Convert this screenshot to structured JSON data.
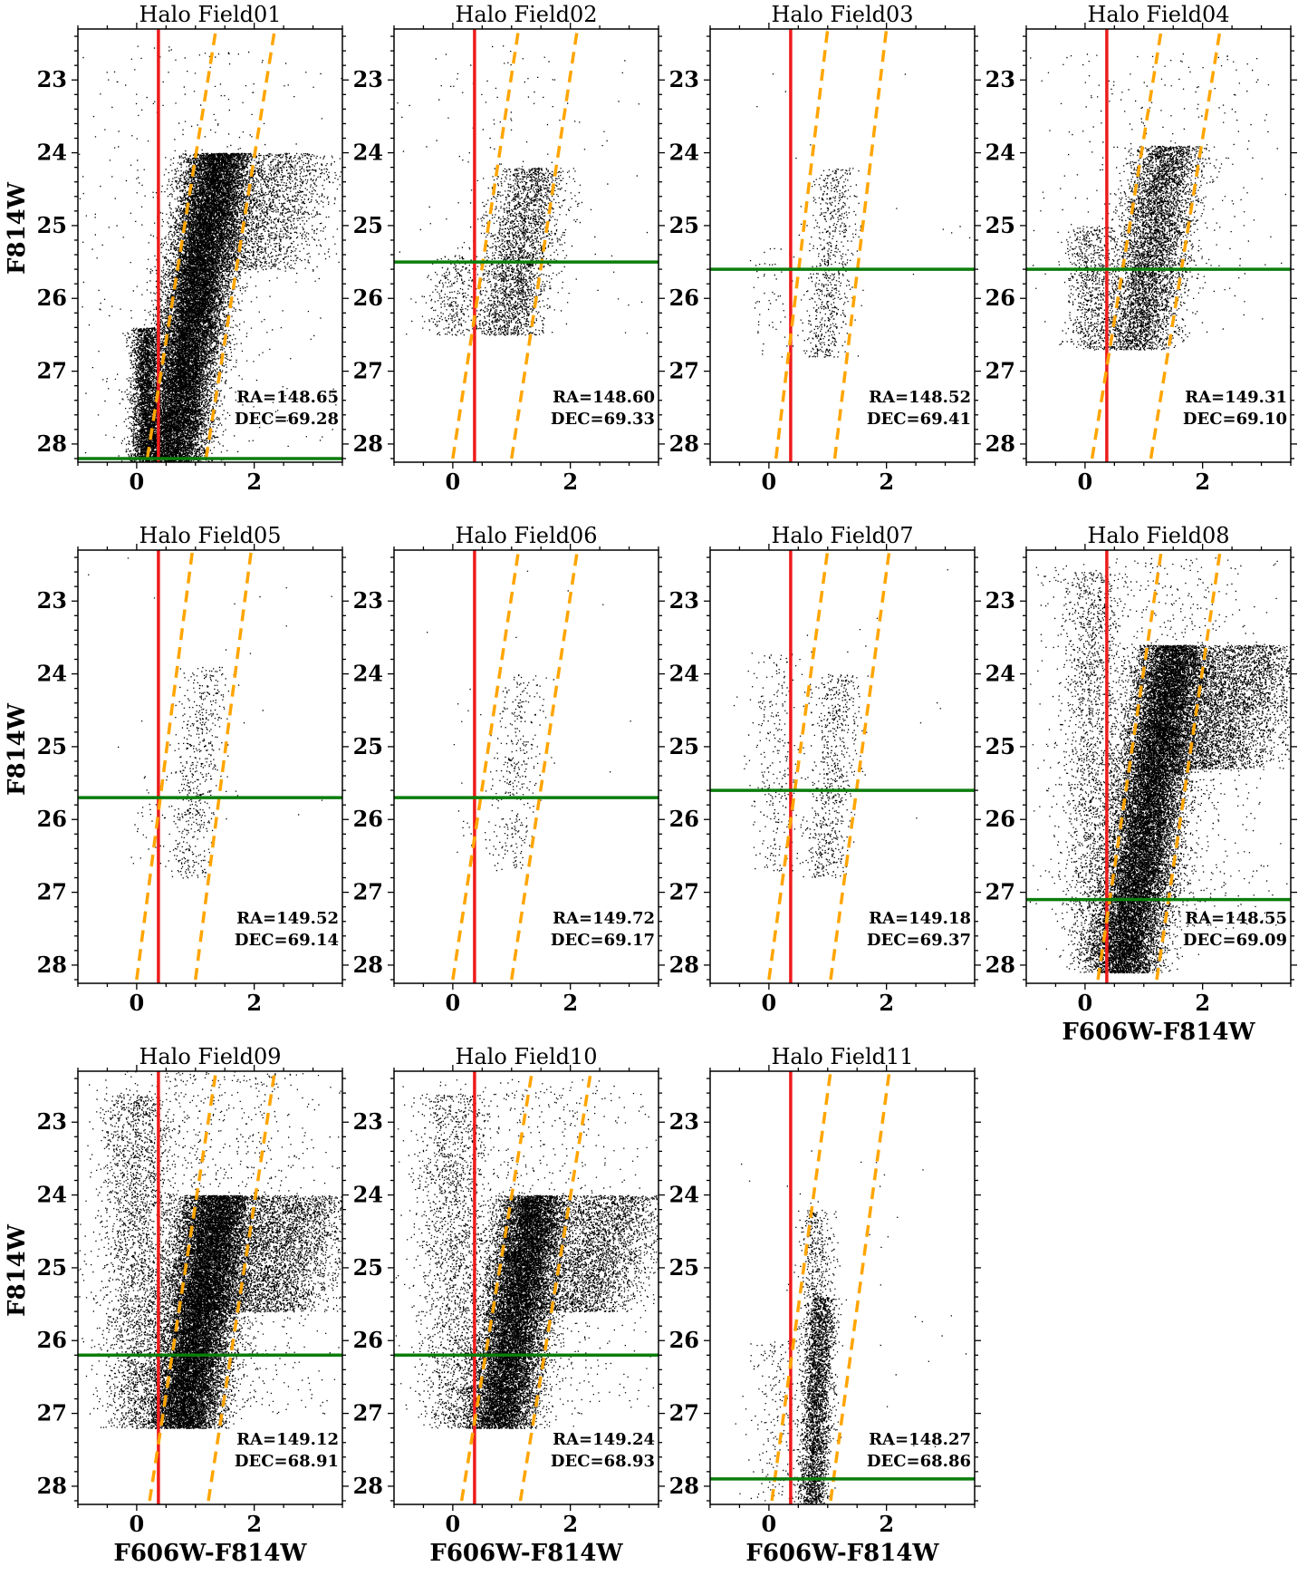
{
  "colors": {
    "points": "#000000",
    "color_cut": "#ee1c1c",
    "trgb_line": "#0b7d0b",
    "rgb_box": "#ffa500",
    "frame": "#000000"
  },
  "chart_data": [
    {
      "type": "scatter",
      "title": "Halo Field01",
      "xlabel": "",
      "ylabel": "F814W",
      "xlim": [
        -1,
        3.5
      ],
      "ylim": [
        28.25,
        22.3
      ],
      "xticks": [
        0,
        2
      ],
      "yticks": [
        23,
        24,
        25,
        26,
        27,
        28
      ],
      "xticklabels": [
        "0",
        "2"
      ],
      "yticklabels": [
        "23",
        "24",
        "25",
        "26",
        "27",
        "28"
      ],
      "color_cut_x": 0.37,
      "trgb_mag": 28.2,
      "rgb_box_lines": [
        [
          [
            0.18,
            28.2
          ],
          [
            1.35,
            22.3
          ]
        ],
        [
          [
            1.18,
            28.2
          ],
          [
            2.35,
            22.3
          ]
        ]
      ],
      "annotation": [
        "RA=148.65",
        "DEC=69.28"
      ],
      "populations": [
        {
          "n": 22000,
          "c0": 1.0,
          "slope": -0.2,
          "w": 0.28,
          "mtop": 24.0,
          "mbot": 28.25
        },
        {
          "n": 2200,
          "c0": 1.6,
          "slope": -0.45,
          "w": 0.55,
          "mtop": 24.0,
          "mbot": 25.6
        },
        {
          "n": 2600,
          "c0": 0.15,
          "slope": 0,
          "w": 0.12,
          "mtop": 26.4,
          "mbot": 28.25
        },
        {
          "n": 500,
          "c0": 0.8,
          "slope": 0,
          "w": 1.2,
          "mtop": 22.5,
          "mbot": 28.2
        }
      ]
    },
    {
      "type": "scatter",
      "title": "Halo Field02",
      "xlabel": "",
      "ylabel": "",
      "xlim": [
        -1,
        3.5
      ],
      "ylim": [
        28.25,
        22.3
      ],
      "xticks": [
        0,
        2
      ],
      "yticks": [
        23,
        24,
        25,
        26,
        27,
        28
      ],
      "xticklabels": [
        "0",
        "2"
      ],
      "yticklabels": [
        "23",
        "24",
        "25",
        "26",
        "27",
        "28"
      ],
      "color_cut_x": 0.37,
      "trgb_mag": 25.5,
      "rgb_box_lines": [
        [
          [
            0.0,
            28.2
          ],
          [
            1.12,
            22.3
          ]
        ],
        [
          [
            1.0,
            28.2
          ],
          [
            2.12,
            22.3
          ]
        ]
      ],
      "annotation": [
        "RA=148.60",
        "DEC=69.33"
      ],
      "populations": [
        {
          "n": 2600,
          "c0": 1.0,
          "slope": -0.2,
          "w": 0.3,
          "mtop": 24.2,
          "mbot": 26.5
        },
        {
          "n": 300,
          "c0": 0.0,
          "slope": 0,
          "w": 0.2,
          "mtop": 25.4,
          "mbot": 26.5
        },
        {
          "n": 200,
          "c0": 1.0,
          "slope": 0,
          "w": 1.0,
          "mtop": 22.5,
          "mbot": 26.5
        }
      ]
    },
    {
      "type": "scatter",
      "title": "Halo Field03",
      "xlabel": "",
      "ylabel": "",
      "xlim": [
        -1,
        3.5
      ],
      "ylim": [
        28.25,
        22.3
      ],
      "xticks": [
        0,
        2
      ],
      "yticks": [
        23,
        24,
        25,
        26,
        27,
        28
      ],
      "xticklabels": [
        "0",
        "2"
      ],
      "yticklabels": [
        "23",
        "24",
        "25",
        "26",
        "27",
        "28"
      ],
      "color_cut_x": 0.37,
      "trgb_mag": 25.6,
      "rgb_box_lines": [
        [
          [
            0.12,
            28.2
          ],
          [
            1.0,
            22.3
          ]
        ],
        [
          [
            1.12,
            28.2
          ],
          [
            2.0,
            22.3
          ]
        ]
      ],
      "annotation": [
        "RA=148.52",
        "DEC=69.41"
      ],
      "populations": [
        {
          "n": 700,
          "c0": 1.0,
          "slope": -0.1,
          "w": 0.18,
          "mtop": 24.2,
          "mbot": 26.8
        },
        {
          "n": 60,
          "c0": 0.1,
          "slope": 0,
          "w": 0.25,
          "mtop": 25.3,
          "mbot": 26.8
        },
        {
          "n": 20,
          "c0": 1.5,
          "slope": 0,
          "w": 1.3,
          "mtop": 22.8,
          "mbot": 26.0
        }
      ]
    },
    {
      "type": "scatter",
      "title": "Halo Field04",
      "xlabel": "",
      "ylabel": "",
      "xlim": [
        -1,
        3.5
      ],
      "ylim": [
        28.25,
        22.3
      ],
      "xticks": [
        0,
        2
      ],
      "yticks": [
        23,
        24,
        25,
        26,
        27,
        28
      ],
      "xticklabels": [
        "0",
        "2"
      ],
      "yticklabels": [
        "23",
        "24",
        "25",
        "26",
        "27",
        "28"
      ],
      "color_cut_x": 0.37,
      "trgb_mag": 25.6,
      "rgb_box_lines": [
        [
          [
            0.12,
            28.2
          ],
          [
            1.3,
            22.3
          ]
        ],
        [
          [
            1.12,
            28.2
          ],
          [
            2.3,
            22.3
          ]
        ]
      ],
      "annotation": [
        "RA=149.31",
        "DEC=69.10"
      ],
      "populations": [
        {
          "n": 5200,
          "c0": 1.0,
          "slope": -0.2,
          "w": 0.3,
          "mtop": 23.9,
          "mbot": 26.7
        },
        {
          "n": 800,
          "c0": 0.1,
          "slope": 0,
          "w": 0.22,
          "mtop": 25.0,
          "mbot": 26.7
        },
        {
          "n": 350,
          "c0": 1.2,
          "slope": 0,
          "w": 1.1,
          "mtop": 22.6,
          "mbot": 26.5
        }
      ]
    },
    {
      "type": "scatter",
      "title": "Halo Field05",
      "xlabel": "",
      "ylabel": "F814W",
      "xlim": [
        -1,
        3.5
      ],
      "ylim": [
        28.25,
        22.3
      ],
      "xticks": [
        0,
        2
      ],
      "yticks": [
        23,
        24,
        25,
        26,
        27,
        28
      ],
      "xticklabels": [
        "0",
        "2"
      ],
      "yticklabels": [
        "23",
        "24",
        "25",
        "26",
        "27",
        "28"
      ],
      "color_cut_x": 0.37,
      "trgb_mag": 25.7,
      "rgb_box_lines": [
        [
          [
            0.0,
            28.2
          ],
          [
            0.95,
            22.3
          ]
        ],
        [
          [
            1.0,
            28.2
          ],
          [
            1.95,
            22.3
          ]
        ]
      ],
      "annotation": [
        "RA=149.52",
        "DEC=69.14"
      ],
      "populations": [
        {
          "n": 600,
          "c0": 0.95,
          "slope": -0.12,
          "w": 0.2,
          "mtop": 23.9,
          "mbot": 26.8
        },
        {
          "n": 30,
          "c0": 0.2,
          "slope": 0,
          "w": 0.15,
          "mtop": 25.4,
          "mbot": 26.6
        },
        {
          "n": 20,
          "c0": 1.5,
          "slope": 0,
          "w": 1.2,
          "mtop": 22.4,
          "mbot": 26.0
        }
      ]
    },
    {
      "type": "scatter",
      "title": "Halo Field06",
      "xlabel": "",
      "ylabel": "",
      "xlim": [
        -1,
        3.5
      ],
      "ylim": [
        28.25,
        22.3
      ],
      "xticks": [
        0,
        2
      ],
      "yticks": [
        23,
        24,
        25,
        26,
        27,
        28
      ],
      "xticklabels": [
        "0",
        "2"
      ],
      "yticklabels": [
        "23",
        "24",
        "25",
        "26",
        "27",
        "28"
      ],
      "color_cut_x": 0.37,
      "trgb_mag": 25.7,
      "rgb_box_lines": [
        [
          [
            0.0,
            28.2
          ],
          [
            1.12,
            22.3
          ]
        ],
        [
          [
            1.0,
            28.2
          ],
          [
            2.12,
            22.3
          ]
        ]
      ],
      "annotation": [
        "RA=149.72",
        "DEC=69.17"
      ],
      "populations": [
        {
          "n": 340,
          "c0": 1.0,
          "slope": -0.1,
          "w": 0.2,
          "mtop": 24.0,
          "mbot": 26.7
        },
        {
          "n": 20,
          "c0": 0.2,
          "slope": 0,
          "w": 0.15,
          "mtop": 24.2,
          "mbot": 26.5
        },
        {
          "n": 15,
          "c0": 1.6,
          "slope": 0,
          "w": 1.2,
          "mtop": 22.5,
          "mbot": 25.5
        }
      ]
    },
    {
      "type": "scatter",
      "title": "Halo Field07",
      "xlabel": "",
      "ylabel": "",
      "xlim": [
        -1,
        3.5
      ],
      "ylim": [
        28.25,
        22.3
      ],
      "xticks": [
        0,
        2
      ],
      "yticks": [
        23,
        24,
        25,
        26,
        27,
        28
      ],
      "xticklabels": [
        "0",
        "2"
      ],
      "yticklabels": [
        "23",
        "24",
        "25",
        "26",
        "27",
        "28"
      ],
      "color_cut_x": 0.37,
      "trgb_mag": 25.6,
      "rgb_box_lines": [
        [
          [
            0.0,
            28.2
          ],
          [
            1.0,
            22.3
          ]
        ],
        [
          [
            1.05,
            28.2
          ],
          [
            2.05,
            22.3
          ]
        ]
      ],
      "annotation": [
        "RA=149.18",
        "DEC=69.37"
      ],
      "populations": [
        {
          "n": 700,
          "c0": 1.0,
          "slope": -0.1,
          "w": 0.2,
          "mtop": 24.0,
          "mbot": 26.8
        },
        {
          "n": 300,
          "c0": 0.1,
          "slope": 0,
          "w": 0.2,
          "mtop": 23.7,
          "mbot": 26.7
        },
        {
          "n": 30,
          "c0": 1.5,
          "slope": 0,
          "w": 1.2,
          "mtop": 22.5,
          "mbot": 26.0
        }
      ]
    },
    {
      "type": "scatter",
      "title": "Halo Field08",
      "xlabel": "F606W-F814W",
      "ylabel": "",
      "xlim": [
        -1,
        3.5
      ],
      "ylim": [
        28.25,
        22.3
      ],
      "xticks": [
        0,
        2
      ],
      "yticks": [
        23,
        24,
        25,
        26,
        27,
        28
      ],
      "xticklabels": [
        "0",
        "2"
      ],
      "yticklabels": [
        "23",
        "24",
        "25",
        "26",
        "27",
        "28"
      ],
      "color_cut_x": 0.37,
      "trgb_mag": 27.1,
      "rgb_box_lines": [
        [
          [
            0.22,
            28.2
          ],
          [
            1.3,
            22.3
          ]
        ],
        [
          [
            1.22,
            28.2
          ],
          [
            2.3,
            22.3
          ]
        ]
      ],
      "annotation": [
        "RA=148.55",
        "DEC=69.09"
      ],
      "populations": [
        {
          "n": 20000,
          "c0": 1.05,
          "slope": -0.2,
          "w": 0.3,
          "mtop": 23.6,
          "mbot": 28.1
        },
        {
          "n": 4000,
          "c0": 1.8,
          "slope": -0.4,
          "w": 0.55,
          "mtop": 23.6,
          "mbot": 25.3
        },
        {
          "n": 1800,
          "c0": 0.1,
          "slope": 0,
          "w": 0.25,
          "mtop": 22.6,
          "mbot": 28.0
        },
        {
          "n": 1200,
          "c0": 1.2,
          "slope": 0,
          "w": 1.1,
          "mtop": 22.4,
          "mbot": 27.5
        }
      ]
    },
    {
      "type": "scatter",
      "title": "Halo Field09",
      "xlabel": "F606W-F814W",
      "ylabel": "F814W",
      "xlim": [
        -1,
        3.5
      ],
      "ylim": [
        28.25,
        22.3
      ],
      "xticks": [
        0,
        2
      ],
      "yticks": [
        23,
        24,
        25,
        26,
        27,
        28
      ],
      "xticklabels": [
        "0",
        "2"
      ],
      "yticklabels": [
        "23",
        "24",
        "25",
        "26",
        "27",
        "28"
      ],
      "color_cut_x": 0.37,
      "trgb_mag": 26.2,
      "rgb_box_lines": [
        [
          [
            0.22,
            28.2
          ],
          [
            1.35,
            22.3
          ]
        ],
        [
          [
            1.22,
            28.2
          ],
          [
            2.35,
            22.3
          ]
        ]
      ],
      "annotation": [
        "RA=149.12",
        "DEC=68.91"
      ],
      "populations": [
        {
          "n": 18000,
          "c0": 1.0,
          "slope": -0.2,
          "w": 0.32,
          "mtop": 24.0,
          "mbot": 27.2
        },
        {
          "n": 3500,
          "c0": 1.9,
          "slope": -0.45,
          "w": 0.55,
          "mtop": 24.0,
          "mbot": 25.6
        },
        {
          "n": 2500,
          "c0": 0.0,
          "slope": 0,
          "w": 0.3,
          "mtop": 22.6,
          "mbot": 27.2
        },
        {
          "n": 1500,
          "c0": 1.2,
          "slope": 0,
          "w": 1.1,
          "mtop": 22.3,
          "mbot": 27.0
        }
      ]
    },
    {
      "type": "scatter",
      "title": "Halo Field10",
      "xlabel": "F606W-F814W",
      "ylabel": "",
      "xlim": [
        -1,
        3.5
      ],
      "ylim": [
        28.25,
        22.3
      ],
      "xticks": [
        0,
        2
      ],
      "yticks": [
        23,
        24,
        25,
        26,
        27,
        28
      ],
      "xticklabels": [
        "0",
        "2"
      ],
      "yticklabels": [
        "23",
        "24",
        "25",
        "26",
        "27",
        "28"
      ],
      "color_cut_x": 0.37,
      "trgb_mag": 26.2,
      "rgb_box_lines": [
        [
          [
            0.15,
            28.2
          ],
          [
            1.35,
            22.3
          ]
        ],
        [
          [
            1.15,
            28.2
          ],
          [
            2.35,
            22.3
          ]
        ]
      ],
      "annotation": [
        "RA=149.24",
        "DEC=68.93"
      ],
      "populations": [
        {
          "n": 15000,
          "c0": 1.0,
          "slope": -0.2,
          "w": 0.3,
          "mtop": 24.0,
          "mbot": 27.2
        },
        {
          "n": 3000,
          "c0": 1.9,
          "slope": -0.45,
          "w": 0.5,
          "mtop": 24.0,
          "mbot": 25.6
        },
        {
          "n": 1800,
          "c0": 0.0,
          "slope": 0,
          "w": 0.3,
          "mtop": 22.6,
          "mbot": 27.2
        },
        {
          "n": 1000,
          "c0": 1.2,
          "slope": 0,
          "w": 1.1,
          "mtop": 22.4,
          "mbot": 27.0
        }
      ]
    },
    {
      "type": "scatter",
      "title": "Halo Field11",
      "xlabel": "F606W-F814W",
      "ylabel": "",
      "xlim": [
        -1,
        3.5
      ],
      "ylim": [
        28.25,
        22.3
      ],
      "xticks": [
        0,
        2
      ],
      "yticks": [
        23,
        24,
        25,
        26,
        27,
        28
      ],
      "xticklabels": [
        "0",
        "2"
      ],
      "yticklabels": [
        "23",
        "24",
        "25",
        "26",
        "27",
        "28"
      ],
      "color_cut_x": 0.37,
      "trgb_mag": 27.9,
      "rgb_box_lines": [
        [
          [
            0.05,
            28.2
          ],
          [
            1.05,
            22.3
          ]
        ],
        [
          [
            1.05,
            28.2
          ],
          [
            2.05,
            22.3
          ]
        ]
      ],
      "annotation": [
        "RA=148.27",
        "DEC=68.86"
      ],
      "populations": [
        {
          "n": 3200,
          "c0": 0.85,
          "slope": -0.05,
          "w": 0.13,
          "mtop": 25.4,
          "mbot": 28.25
        },
        {
          "n": 350,
          "c0": 0.8,
          "slope": 0,
          "w": 0.15,
          "mtop": 24.2,
          "mbot": 25.4
        },
        {
          "n": 200,
          "c0": 0.1,
          "slope": 0,
          "w": 0.2,
          "mtop": 26.0,
          "mbot": 28.2
        },
        {
          "n": 40,
          "c0": 1.5,
          "slope": 0,
          "w": 1.0,
          "mtop": 23.3,
          "mbot": 27.5
        }
      ]
    }
  ]
}
